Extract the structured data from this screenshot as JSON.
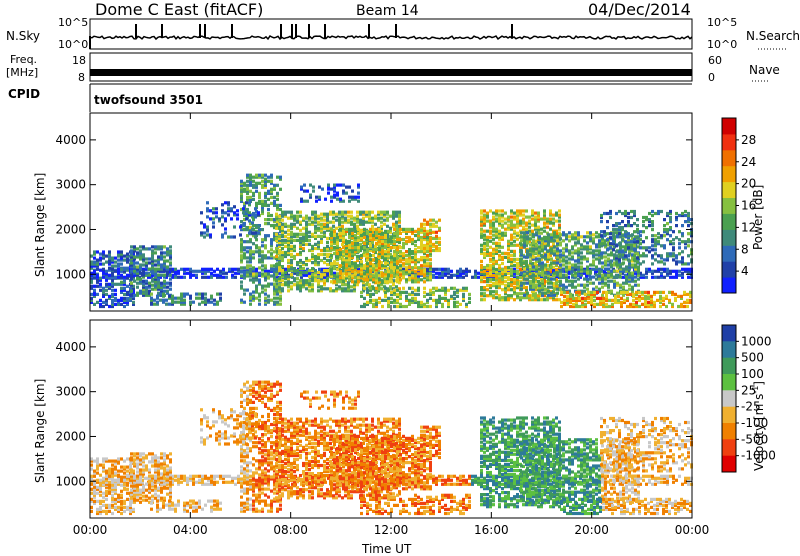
{
  "header": {
    "title": "Dome C East (fitACF)",
    "beam": "Beam 14",
    "date": "04/Dec/2014"
  },
  "left_labels": {
    "nsky": "N.Sky",
    "freq": "Freq.",
    "freq_unit": "[MHz]",
    "cpid": "CPID"
  },
  "right_labels": {
    "nsearch": "N.Search",
    "nave": "Nave"
  },
  "sky_ticks": {
    "left_top": "10^5",
    "left_bottom": "10^0",
    "right_top": "10^5",
    "right_bottom": "10^0"
  },
  "freq_ticks": {
    "left": [
      "18",
      "8"
    ],
    "right": [
      "60",
      "0"
    ]
  },
  "cpid_text": "twofsound 3501",
  "chart_data": [
    {
      "type": "heatmap",
      "quantity": "Power",
      "ylabel": "Slant Range [km]",
      "xlabel": "",
      "x_ticks": [
        "00:00",
        "04:00",
        "08:00",
        "12:00",
        "16:00",
        "20:00",
        "00:00"
      ],
      "y_ticks": [
        1000,
        2000,
        3000,
        4000
      ],
      "ylim": [
        180,
        4600
      ],
      "colorbar": {
        "label": "Power [dB]",
        "ticks": [
          4,
          8,
          12,
          16,
          20,
          24,
          28
        ],
        "colors": [
          "#1020ff",
          "#2040a8",
          "#2e6ab8",
          "#3f8a7a",
          "#4aa050",
          "#86c040",
          "#e0d020",
          "#f0a000",
          "#f07000",
          "#f03010",
          "#d00000"
        ]
      }
    },
    {
      "type": "heatmap",
      "quantity": "Velocity",
      "ylabel": "Slant Range [km]",
      "xlabel": "Time UT",
      "x_ticks": [
        "00:00",
        "04:00",
        "08:00",
        "12:00",
        "16:00",
        "20:00",
        "00:00"
      ],
      "y_ticks": [
        1000,
        2000,
        3000,
        4000
      ],
      "ylim": [
        180,
        4600
      ],
      "colorbar": {
        "label": "Velocity [m s^-1]",
        "ticks": [
          1000,
          500,
          100,
          25,
          -25,
          -100,
          -500,
          -1000
        ],
        "colors": [
          "#1f3fa6",
          "#2d7a9a",
          "#3f9a5a",
          "#5cc040",
          "#c8c8c8",
          "#f0b030",
          "#f08000",
          "#f04010",
          "#e00000"
        ]
      }
    }
  ]
}
